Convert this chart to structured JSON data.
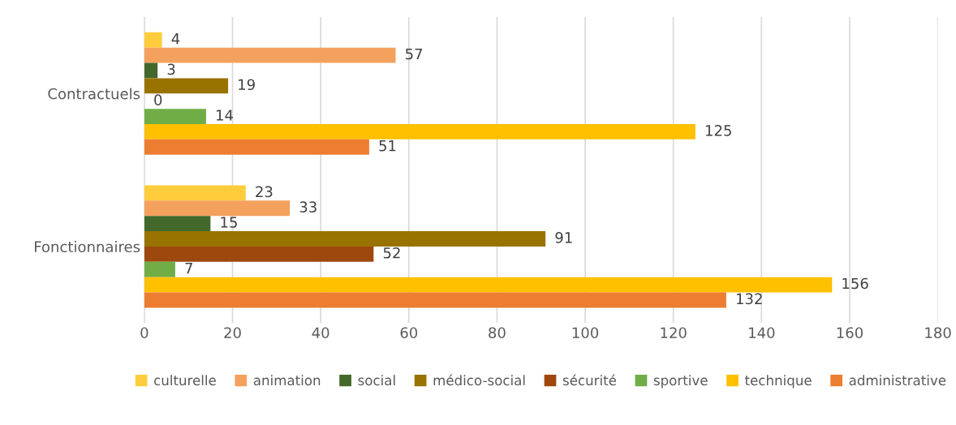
{
  "chart_data": {
    "type": "bar",
    "orientation": "horizontal",
    "categories": [
      "Contractuels",
      "Fonctionnaires"
    ],
    "series": [
      {
        "name": "culturelle",
        "color": "#ffcd3c",
        "values": [
          4,
          23
        ]
      },
      {
        "name": "animation",
        "color": "#f4a15d",
        "values": [
          57,
          33
        ]
      },
      {
        "name": "social",
        "color": "#43682b",
        "values": [
          3,
          15
        ]
      },
      {
        "name": "médico-social",
        "color": "#997300",
        "values": [
          19,
          91
        ]
      },
      {
        "name": "sécurité",
        "color": "#9e480e",
        "values": [
          0,
          52
        ]
      },
      {
        "name": "sportive",
        "color": "#70ad47",
        "values": [
          14,
          7
        ]
      },
      {
        "name": "technique",
        "color": "#ffc000",
        "values": [
          125,
          156
        ]
      },
      {
        "name": "administrative",
        "color": "#ed7d31",
        "values": [
          51,
          132
        ]
      }
    ],
    "xlim": [
      0,
      180
    ],
    "xticks": [
      0,
      20,
      40,
      60,
      80,
      100,
      120,
      140,
      160,
      180
    ],
    "grid": "x",
    "legend": "bottom",
    "data_labels": true
  }
}
